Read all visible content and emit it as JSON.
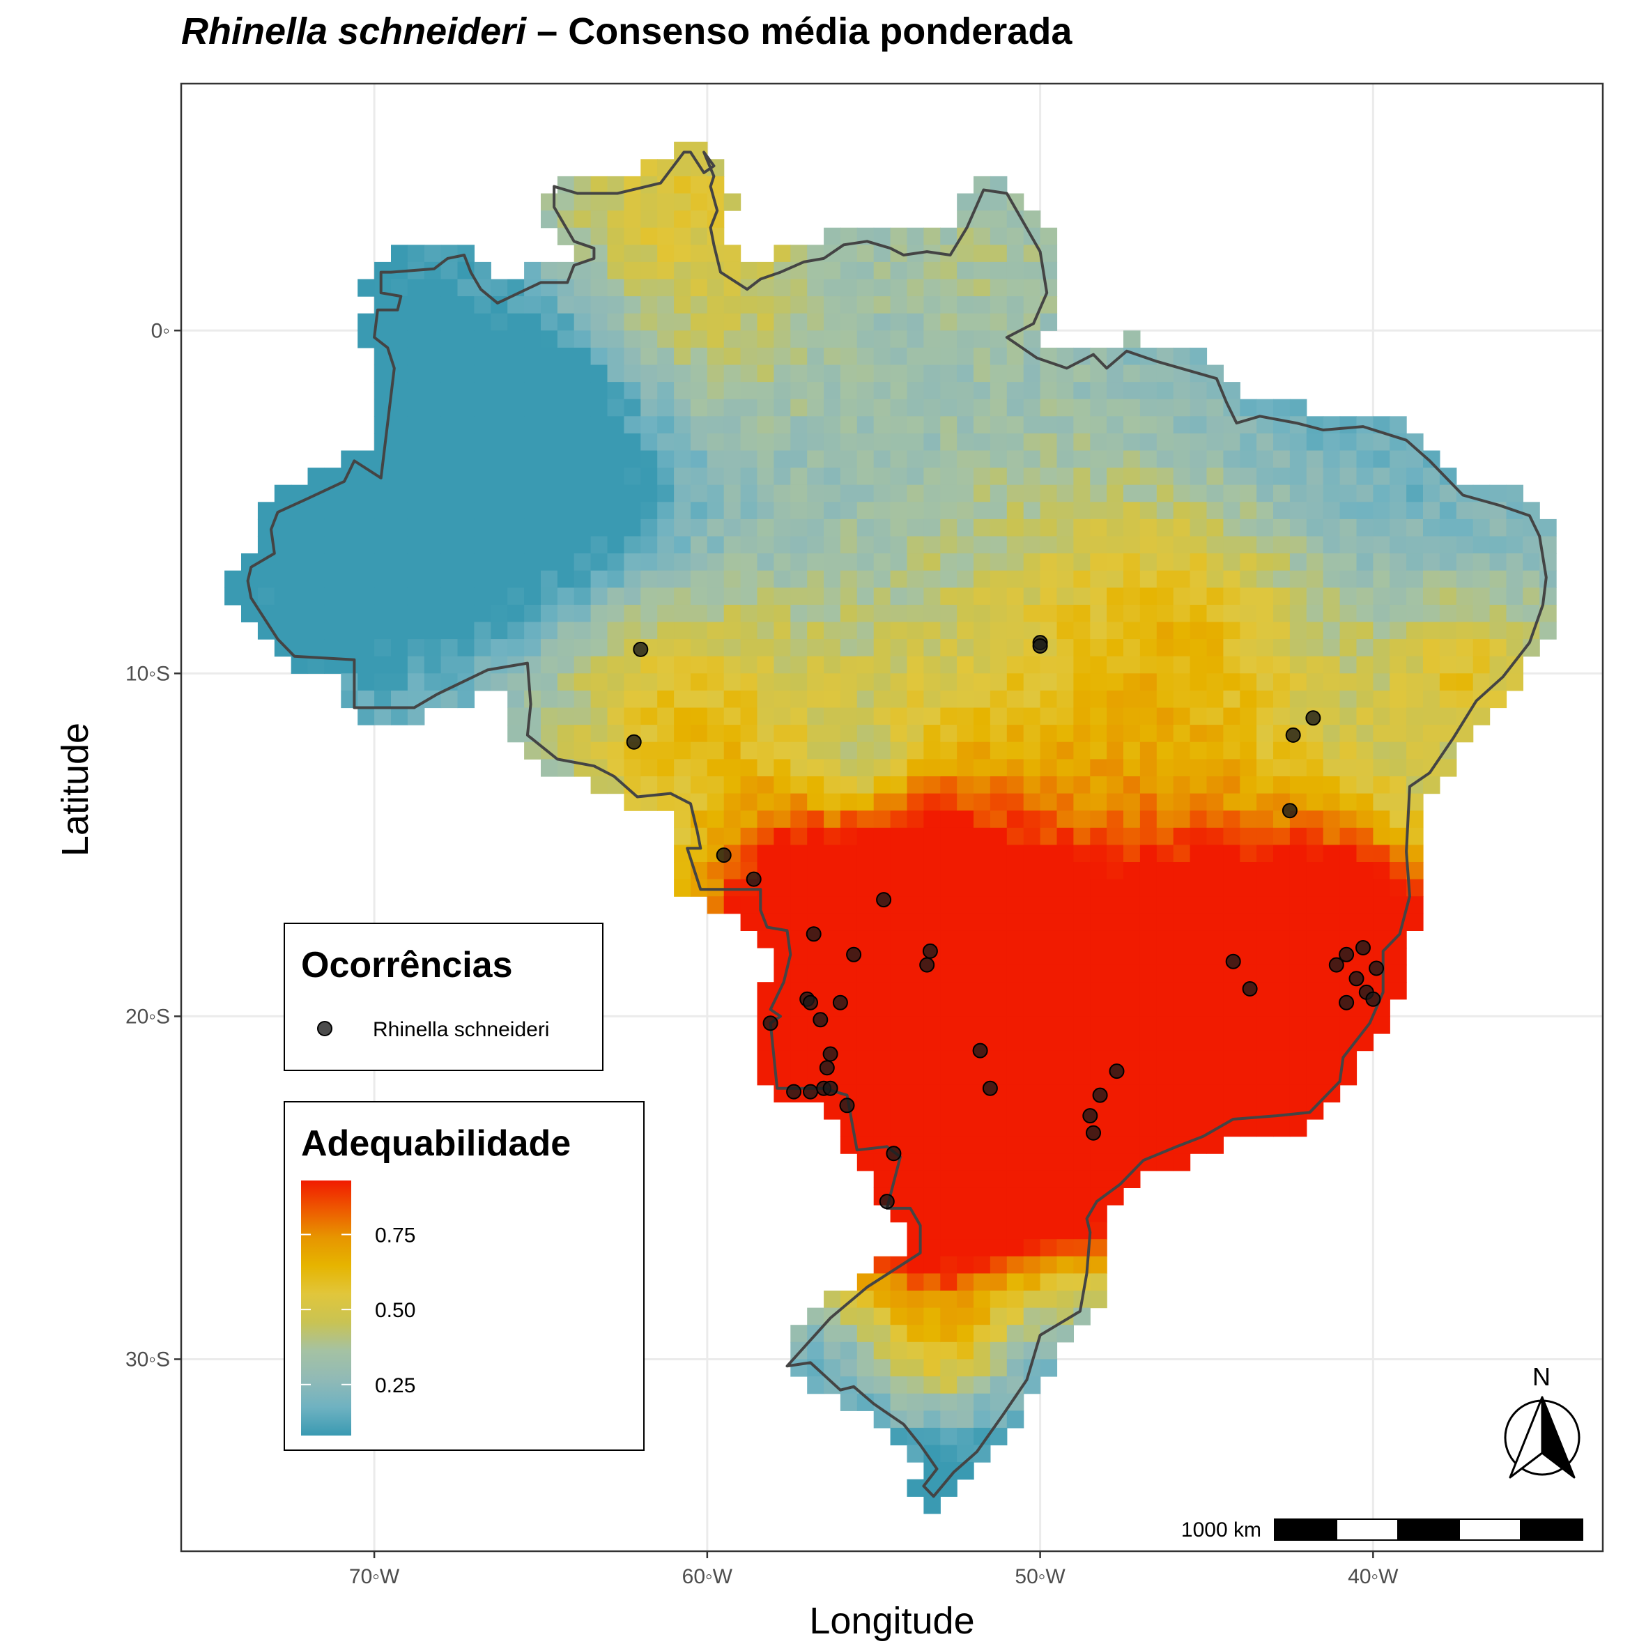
{
  "title": {
    "species": "Rhinella schneideri",
    "separator": " – ",
    "rest": "Consenso média ponderada"
  },
  "axes": {
    "xlabel": "Longitude",
    "ylabel": "Latitude",
    "x_ticks": [
      {
        "value": -70,
        "label": "70◦W"
      },
      {
        "value": -60,
        "label": "60◦W"
      },
      {
        "value": -50,
        "label": "50◦W"
      },
      {
        "value": -40,
        "label": "40◦W"
      }
    ],
    "y_ticks": [
      {
        "value": 0,
        "label": "0◦"
      },
      {
        "value": -10,
        "label": "10◦S"
      },
      {
        "value": -20,
        "label": "20◦S"
      },
      {
        "value": -30,
        "label": "30◦S"
      }
    ],
    "xlim": [
      -75.8,
      -33.1
    ],
    "ylim": [
      -35.6,
      7.2
    ]
  },
  "legend_points": {
    "title": "Ocorrências",
    "label": "Rhinella schneideri",
    "color": "#1a1a1a"
  },
  "legend_color": {
    "title": "Adequabilidade",
    "ticks": [
      {
        "value": 0.25,
        "label": "0.25"
      },
      {
        "value": 0.5,
        "label": "0.50"
      },
      {
        "value": 0.75,
        "label": "0.75"
      }
    ],
    "range": [
      0.08,
      0.93
    ],
    "colors": [
      "#3a9ab2",
      "#6fb2c1",
      "#91bab6",
      "#a5c2a3",
      "#c9c353",
      "#e1c63b",
      "#e6b400",
      "#e79500",
      "#ee5800",
      "#f11b00"
    ]
  },
  "north_arrow": {
    "label": "N"
  },
  "scale_bar": {
    "label": "1000 km"
  },
  "map_data": {
    "occurrences": [
      [
        -62.0,
        -9.3
      ],
      [
        -62.2,
        -12.0
      ],
      [
        -50.0,
        -9.1
      ],
      [
        -50.0,
        -9.2
      ],
      [
        -42.4,
        -11.8
      ],
      [
        -41.8,
        -11.3
      ],
      [
        -42.5,
        -14.0
      ],
      [
        -59.5,
        -15.3
      ],
      [
        -58.6,
        -16.0
      ],
      [
        -54.7,
        -16.6
      ],
      [
        -56.8,
        -17.6
      ],
      [
        -55.6,
        -18.2
      ],
      [
        -53.3,
        -18.1
      ],
      [
        -53.4,
        -18.5
      ],
      [
        -57.0,
        -19.5
      ],
      [
        -56.9,
        -19.6
      ],
      [
        -56.0,
        -19.6
      ],
      [
        -56.6,
        -20.1
      ],
      [
        -58.1,
        -20.2
      ],
      [
        -56.3,
        -21.1
      ],
      [
        -56.4,
        -21.5
      ],
      [
        -57.4,
        -22.2
      ],
      [
        -56.9,
        -22.2
      ],
      [
        -56.5,
        -22.1
      ],
      [
        -56.3,
        -22.1
      ],
      [
        -55.8,
        -22.6
      ],
      [
        -51.8,
        -21.0
      ],
      [
        -51.5,
        -22.1
      ],
      [
        -47.7,
        -21.6
      ],
      [
        -48.2,
        -22.3
      ],
      [
        -48.5,
        -22.9
      ],
      [
        -48.4,
        -23.4
      ],
      [
        -54.4,
        -24.0
      ],
      [
        -54.6,
        -25.4
      ],
      [
        -44.2,
        -18.4
      ],
      [
        -43.7,
        -19.2
      ],
      [
        -40.3,
        -18.0
      ],
      [
        -40.8,
        -18.2
      ],
      [
        -41.1,
        -18.5
      ],
      [
        -40.5,
        -18.9
      ],
      [
        -40.2,
        -19.3
      ],
      [
        -40.0,
        -19.5
      ],
      [
        -39.9,
        -18.6
      ],
      [
        -40.8,
        -19.6
      ]
    ],
    "hotspots": [
      {
        "lon": -56.5,
        "lat": -20.8,
        "r": 3.6,
        "w": 0.95
      },
      {
        "lon": -52.0,
        "lat": -22.0,
        "r": 3.8,
        "w": 1.0
      },
      {
        "lon": -48.0,
        "lat": -22.8,
        "r": 2.8,
        "w": 0.75
      },
      {
        "lon": -40.6,
        "lat": -18.8,
        "r": 2.6,
        "w": 1.0
      },
      {
        "lon": -42.2,
        "lat": -21.8,
        "r": 1.9,
        "w": 0.7
      },
      {
        "lon": -45.0,
        "lat": -19.0,
        "r": 3.5,
        "w": 0.45
      },
      {
        "lon": -55.0,
        "lat": -17.0,
        "r": 3.0,
        "w": 0.45
      },
      {
        "lon": -61.5,
        "lat": -10.8,
        "r": 3.0,
        "w": 0.35
      },
      {
        "lon": -48.0,
        "lat": -12.5,
        "r": 6.5,
        "w": 0.35
      },
      {
        "lon": -37.0,
        "lat": -10.0,
        "r": 2.0,
        "w": 0.3
      },
      {
        "lon": -53.5,
        "lat": -25.5,
        "r": 2.5,
        "w": 0.35
      },
      {
        "lon": -61.5,
        "lat": 3.5,
        "r": 3.5,
        "w": 0.35
      },
      {
        "lon": -60.0,
        "lat": -1.5,
        "r": 2.5,
        "w": 0.15
      },
      {
        "lon": -51.5,
        "lat": 2.5,
        "r": 2.5,
        "w": 0.12
      },
      {
        "lon": -45.0,
        "lat": -8.0,
        "r": 3.0,
        "w": 0.2
      },
      {
        "lon": -53.0,
        "lat": -30.0,
        "r": 1.6,
        "w": 0.45
      }
    ],
    "coldspots": [
      {
        "lon": -67.5,
        "lat": -2.5,
        "r": 4.5,
        "w": 0.25
      },
      {
        "lon": -64.0,
        "lat": -4.0,
        "r": 3.5,
        "w": 0.2
      },
      {
        "lon": -71.0,
        "lat": -6.5,
        "r": 2.5,
        "w": 0.2
      },
      {
        "lon": -53.0,
        "lat": -30.5,
        "r": 3.5,
        "w": 0.3
      },
      {
        "lon": -55.5,
        "lat": -13.0,
        "r": 1.2,
        "w": 0.25
      },
      {
        "lon": -42.0,
        "lat": -5.0,
        "r": 4.0,
        "w": 0.15
      }
    ],
    "border": [
      [
        -60.1,
        5.2
      ],
      [
        -59.8,
        4.8
      ],
      [
        -60.1,
        4.6
      ],
      [
        -60.5,
        5.2
      ],
      [
        -60.7,
        5.2
      ],
      [
        -61.4,
        4.3
      ],
      [
        -62.7,
        4.0
      ],
      [
        -63.9,
        4.0
      ],
      [
        -64.6,
        4.2
      ],
      [
        -64.6,
        3.6
      ],
      [
        -64.0,
        2.6
      ],
      [
        -63.4,
        2.4
      ],
      [
        -63.4,
        2.1
      ],
      [
        -64.0,
        1.9
      ],
      [
        -64.2,
        1.4
      ],
      [
        -65.0,
        1.4
      ],
      [
        -66.3,
        0.8
      ],
      [
        -66.8,
        1.2
      ],
      [
        -67.1,
        1.7
      ],
      [
        -67.3,
        2.2
      ],
      [
        -67.8,
        2.1
      ],
      [
        -68.2,
        1.8
      ],
      [
        -69.5,
        1.7
      ],
      [
        -69.8,
        1.7
      ],
      [
        -69.8,
        1.1
      ],
      [
        -69.2,
        1.0
      ],
      [
        -69.3,
        0.6
      ],
      [
        -69.9,
        0.6
      ],
      [
        -70.0,
        -0.2
      ],
      [
        -69.6,
        -0.5
      ],
      [
        -69.4,
        -1.1
      ],
      [
        -69.8,
        -4.3
      ],
      [
        -70.6,
        -3.8
      ],
      [
        -70.9,
        -4.4
      ],
      [
        -72.0,
        -4.9
      ],
      [
        -72.9,
        -5.3
      ],
      [
        -73.1,
        -5.8
      ],
      [
        -73.0,
        -6.5
      ],
      [
        -73.7,
        -6.9
      ],
      [
        -73.8,
        -7.3
      ],
      [
        -73.7,
        -7.8
      ],
      [
        -73.3,
        -8.4
      ],
      [
        -72.9,
        -9.0
      ],
      [
        -72.4,
        -9.5
      ],
      [
        -70.6,
        -9.6
      ],
      [
        -70.6,
        -11.0
      ],
      [
        -69.6,
        -11.0
      ],
      [
        -68.8,
        -11.0
      ],
      [
        -68.1,
        -10.6
      ],
      [
        -66.6,
        -9.9
      ],
      [
        -65.4,
        -9.7
      ],
      [
        -65.3,
        -10.9
      ],
      [
        -65.4,
        -11.8
      ],
      [
        -64.5,
        -12.5
      ],
      [
        -63.4,
        -12.7
      ],
      [
        -62.8,
        -13.0
      ],
      [
        -62.1,
        -13.6
      ],
      [
        -61.1,
        -13.5
      ],
      [
        -60.5,
        -13.8
      ],
      [
        -60.3,
        -14.6
      ],
      [
        -60.2,
        -15.1
      ],
      [
        -60.6,
        -15.1
      ],
      [
        -60.2,
        -16.3
      ],
      [
        -58.4,
        -16.3
      ],
      [
        -58.4,
        -16.9
      ],
      [
        -58.2,
        -17.4
      ],
      [
        -57.6,
        -17.5
      ],
      [
        -57.5,
        -18.2
      ],
      [
        -57.7,
        -19.0
      ],
      [
        -58.1,
        -19.8
      ],
      [
        -57.8,
        -20.0
      ],
      [
        -58.1,
        -20.2
      ],
      [
        -57.9,
        -22.1
      ],
      [
        -56.5,
        -22.1
      ],
      [
        -55.8,
        -22.3
      ],
      [
        -55.5,
        -23.9
      ],
      [
        -54.6,
        -23.8
      ],
      [
        -54.2,
        -24.1
      ],
      [
        -54.6,
        -25.6
      ],
      [
        -53.9,
        -25.6
      ],
      [
        -53.6,
        -26.1
      ],
      [
        -53.6,
        -26.9
      ],
      [
        -55.2,
        -27.9
      ],
      [
        -56.3,
        -28.8
      ],
      [
        -57.6,
        -30.2
      ],
      [
        -56.9,
        -30.1
      ],
      [
        -56.0,
        -30.9
      ],
      [
        -55.6,
        -30.8
      ],
      [
        -55.0,
        -31.3
      ],
      [
        -54.1,
        -31.9
      ],
      [
        -53.6,
        -32.5
      ],
      [
        -53.1,
        -33.2
      ],
      [
        -53.5,
        -33.7
      ],
      [
        -53.2,
        -34.0
      ],
      [
        -52.6,
        -33.3
      ],
      [
        -51.9,
        -32.7
      ],
      [
        -51.1,
        -31.6
      ],
      [
        -50.4,
        -30.6
      ],
      [
        -50.0,
        -29.3
      ],
      [
        -48.8,
        -28.6
      ],
      [
        -48.6,
        -27.5
      ],
      [
        -48.5,
        -26.3
      ],
      [
        -48.6,
        -25.9
      ],
      [
        -48.3,
        -25.4
      ],
      [
        -47.6,
        -24.9
      ],
      [
        -46.9,
        -24.2
      ],
      [
        -45.9,
        -23.8
      ],
      [
        -45.1,
        -23.5
      ],
      [
        -44.2,
        -23.0
      ],
      [
        -42.9,
        -22.9
      ],
      [
        -41.9,
        -22.8
      ],
      [
        -41.0,
        -21.9
      ],
      [
        -40.9,
        -21.2
      ],
      [
        -40.1,
        -20.2
      ],
      [
        -39.7,
        -19.3
      ],
      [
        -39.7,
        -18.1
      ],
      [
        -39.2,
        -17.6
      ],
      [
        -38.9,
        -16.5
      ],
      [
        -39.0,
        -15.2
      ],
      [
        -38.9,
        -13.3
      ],
      [
        -38.3,
        -12.9
      ],
      [
        -37.6,
        -11.9
      ],
      [
        -36.9,
        -10.8
      ],
      [
        -36.1,
        -10.1
      ],
      [
        -35.3,
        -9.1
      ],
      [
        -34.9,
        -8.0
      ],
      [
        -34.8,
        -7.2
      ],
      [
        -35.0,
        -6.0
      ],
      [
        -35.3,
        -5.4
      ],
      [
        -36.2,
        -5.1
      ],
      [
        -37.3,
        -4.8
      ],
      [
        -38.3,
        -3.8
      ],
      [
        -39.0,
        -3.2
      ],
      [
        -40.3,
        -2.8
      ],
      [
        -41.5,
        -2.9
      ],
      [
        -42.3,
        -2.7
      ],
      [
        -43.4,
        -2.5
      ],
      [
        -44.1,
        -2.7
      ],
      [
        -44.4,
        -2.1
      ],
      [
        -44.7,
        -1.4
      ],
      [
        -46.5,
        -0.9
      ],
      [
        -47.4,
        -0.6
      ],
      [
        -48.0,
        -1.1
      ],
      [
        -48.4,
        -0.7
      ],
      [
        -49.2,
        -1.1
      ],
      [
        -50.1,
        -0.8
      ],
      [
        -51.0,
        -0.2
      ],
      [
        -50.2,
        0.2
      ],
      [
        -49.8,
        1.1
      ],
      [
        -50.0,
        2.3
      ],
      [
        -51.0,
        4.0
      ],
      [
        -51.7,
        4.1
      ],
      [
        -52.2,
        3.0
      ],
      [
        -52.7,
        2.2
      ],
      [
        -53.4,
        2.3
      ],
      [
        -54.1,
        2.2
      ],
      [
        -54.5,
        2.4
      ],
      [
        -55.2,
        2.6
      ],
      [
        -55.9,
        2.5
      ],
      [
        -56.5,
        2.1
      ],
      [
        -57.1,
        2.0
      ],
      [
        -57.8,
        1.7
      ],
      [
        -58.4,
        1.5
      ],
      [
        -58.8,
        1.2
      ],
      [
        -59.6,
        1.7
      ],
      [
        -59.8,
        2.5
      ],
      [
        -59.9,
        3.0
      ],
      [
        -59.7,
        3.5
      ],
      [
        -59.9,
        4.2
      ],
      [
        -59.8,
        4.5
      ],
      [
        -60.1,
        5.2
      ]
    ]
  }
}
